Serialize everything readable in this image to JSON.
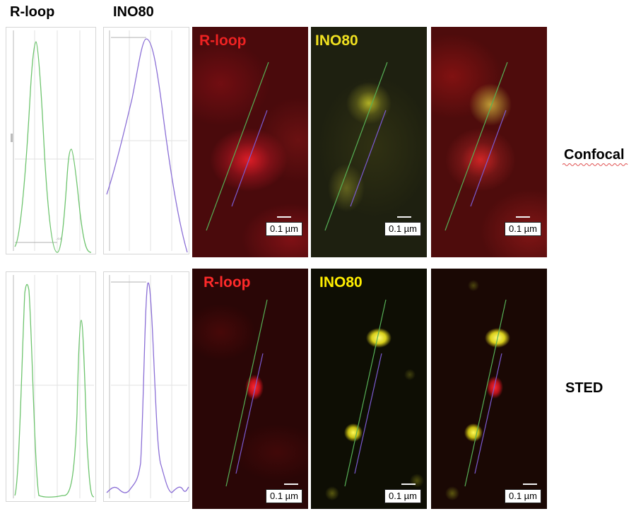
{
  "headers": {
    "rloop": "R-loop",
    "ino80": "INO80"
  },
  "rows": [
    {
      "id": "confocal",
      "label": "Confocal",
      "panels": [
        {
          "channel_label": "R-loop",
          "channel_color": "#ee2222",
          "scale": "0.1 µm"
        },
        {
          "channel_label": "INO80",
          "channel_color": "#f0e020",
          "scale": "0.1 µm"
        },
        {
          "channel_label": "",
          "channel_color": "",
          "scale": "0.1 µm"
        }
      ]
    },
    {
      "id": "sted",
      "label": "STED",
      "panels": [
        {
          "channel_label": "R-loop",
          "channel_color": "#ff2a2a",
          "scale": "0.1 µm"
        },
        {
          "channel_label": "INO80",
          "channel_color": "#ffee00",
          "scale": "0.1 µm"
        },
        {
          "channel_label": "",
          "channel_color": "",
          "scale": "0.1 µm"
        }
      ]
    }
  ],
  "colors": {
    "rloop_line": "#6ec46e",
    "ino80_line": "#8b6fd6",
    "red_signal": "#e0202a",
    "yellow_signal": "#e8e020"
  }
}
